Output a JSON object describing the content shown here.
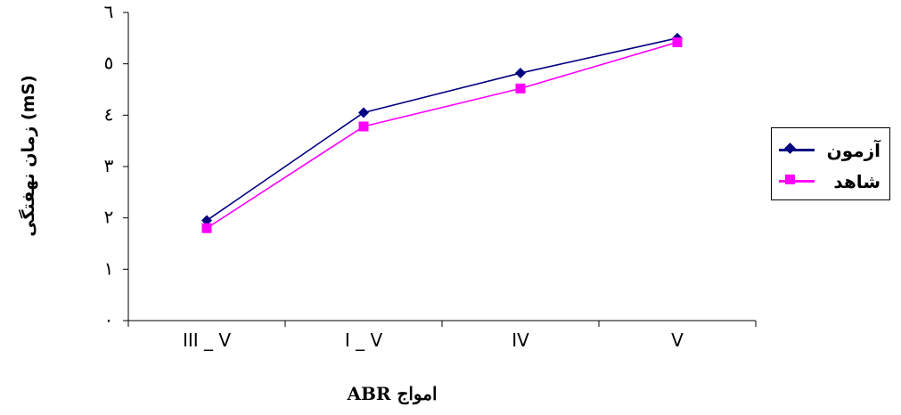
{
  "chart_data": {
    "type": "line",
    "categories": [
      "III _ V",
      "I _ V",
      "IV",
      "V"
    ],
    "series": [
      {
        "name": "آزمون",
        "values": [
          1.95,
          4.05,
          4.82,
          5.5
        ],
        "color": "#000080",
        "marker": "diamond"
      },
      {
        "name": "شاهد",
        "values": [
          1.8,
          3.78,
          4.52,
          5.42
        ],
        "color": "#FF00FF",
        "marker": "square"
      }
    ],
    "title": "",
    "xlabel": "امواج ABR",
    "ylabel": "زمان نهفتگی (mS)",
    "ylim": [
      0,
      6
    ],
    "yticks": [
      "۰",
      "۱",
      "۲",
      "۳",
      "٤",
      "٥",
      "٦"
    ],
    "grid": false,
    "legend_position": "right"
  }
}
